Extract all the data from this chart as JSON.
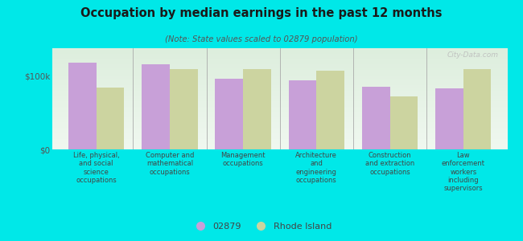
{
  "title": "Occupation by median earnings in the past 12 months",
  "subtitle": "(Note: State values scaled to 02879 population)",
  "categories": [
    "Life, physical,\nand social\nscience\noccupations",
    "Computer and\nmathematical\noccupations",
    "Management\noccupations",
    "Architecture\nand\nengineering\noccupations",
    "Construction\nand extraction\noccupations",
    "Law\nenforcement\nworkers\nincluding\nsupervisors"
  ],
  "values_02879": [
    118000,
    116000,
    96000,
    94000,
    85000,
    83000
  ],
  "values_ri": [
    84000,
    110000,
    110000,
    107000,
    72000,
    110000
  ],
  "color_02879": "#c8a0d8",
  "color_ri": "#ccd4a0",
  "yticks": [
    0,
    100000
  ],
  "ytick_labels": [
    "$0",
    "$100k"
  ],
  "ylim": [
    0,
    138000
  ],
  "legend_labels": [
    "02879",
    "Rhode Island"
  ],
  "background_color": "#00e8e8",
  "plot_bg_top": "#ddeedd",
  "plot_bg_bottom": "#f0f8f0",
  "watermark": "City-Data.com",
  "bar_width": 0.38
}
